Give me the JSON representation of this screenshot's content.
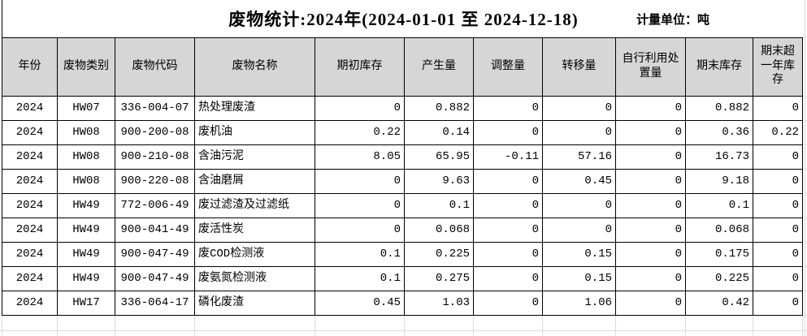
{
  "title": "废物统计:2024年(2024-01-01 至 2024-12-18)",
  "unit_label": "计量单位：吨",
  "table": {
    "columns": [
      "年份",
      "废物类别",
      "废物代码",
      "废物名称",
      "期初库存",
      "产生量",
      "调整量",
      "转移量",
      "自行利用处置量",
      "期末库存",
      "期末超一年库存"
    ],
    "rows": [
      [
        "2024",
        "HW07",
        "336-004-07",
        "热处理废渣",
        "0",
        "0.882",
        "0",
        "0",
        "0",
        "0.882",
        "0"
      ],
      [
        "2024",
        "HW08",
        "900-200-08",
        "废机油",
        "0.22",
        "0.14",
        "0",
        "0",
        "0",
        "0.36",
        "0.22"
      ],
      [
        "2024",
        "HW08",
        "900-210-08",
        "含油污泥",
        "8.05",
        "65.95",
        "-0.11",
        "57.16",
        "0",
        "16.73",
        "0"
      ],
      [
        "2024",
        "HW08",
        "900-220-08",
        "含油磨屑",
        "0",
        "9.63",
        "0",
        "0.45",
        "0",
        "9.18",
        "0"
      ],
      [
        "2024",
        "HW49",
        "772-006-49",
        "废过滤渣及过滤纸",
        "0",
        "0.1",
        "0",
        "0",
        "0",
        "0.1",
        "0"
      ],
      [
        "2024",
        "HW49",
        "900-041-49",
        "废活性炭",
        "0",
        "0.068",
        "0",
        "0",
        "0",
        "0.068",
        "0"
      ],
      [
        "2024",
        "HW49",
        "900-047-49",
        "废COD检测液",
        "0.1",
        "0.225",
        "0",
        "0.15",
        "0",
        "0.175",
        "0"
      ],
      [
        "2024",
        "HW49",
        "900-047-49",
        "废氨氮检测液",
        "0.1",
        "0.275",
        "0",
        "0.15",
        "0",
        "0.225",
        "0"
      ],
      [
        "2024",
        "HW17",
        "336-064-17",
        "磷化废渣",
        "0.45",
        "1.03",
        "0",
        "1.06",
        "0",
        "0.42",
        "0"
      ]
    ]
  },
  "colors": {
    "background": "#ffffff",
    "text": "#000000",
    "border": "#000000",
    "header_bg": "#d6d6d6",
    "gridline": "#dcdcdc"
  }
}
